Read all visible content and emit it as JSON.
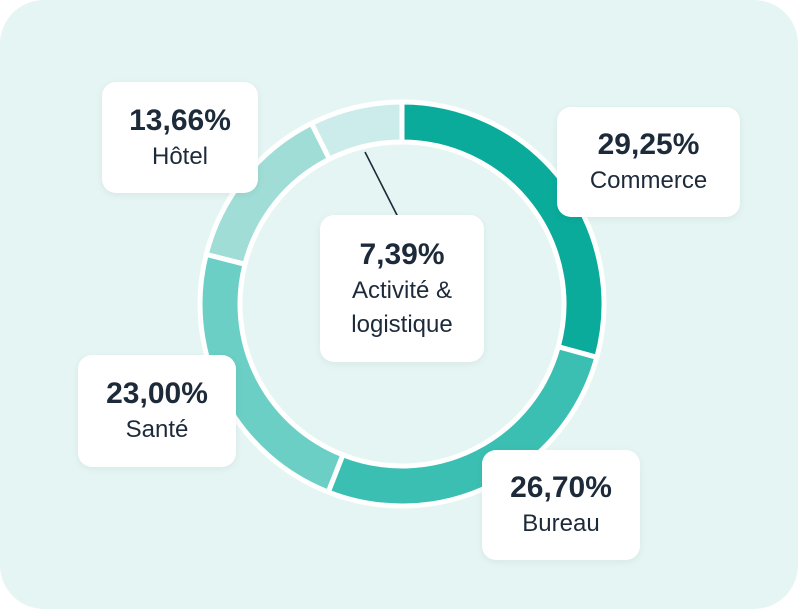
{
  "chart_data": {
    "type": "pie",
    "categories": [
      "Commerce",
      "Bureau",
      "Santé",
      "Hôtel",
      "Activité & logistique"
    ],
    "values": [
      29.25,
      26.7,
      23.0,
      13.66,
      7.39
    ],
    "value_labels": [
      "29,25%",
      "26,70%",
      "23,00%",
      "13,66%",
      "7,39%"
    ],
    "colors": [
      "#0aab9b",
      "#3bbfb2",
      "#6bcfc5",
      "#a0ddd7",
      "#cbecea"
    ]
  }
}
